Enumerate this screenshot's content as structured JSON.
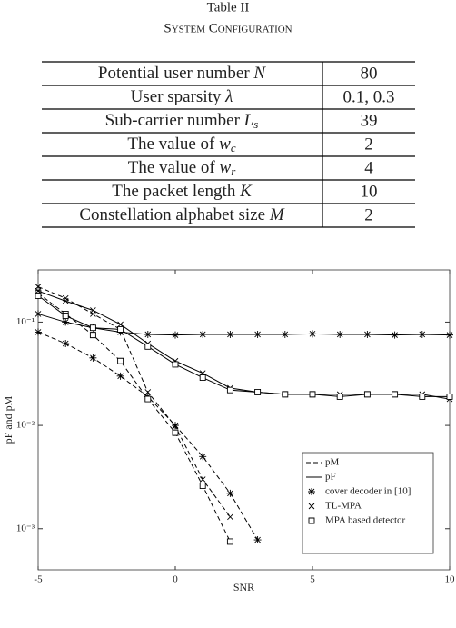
{
  "header": {
    "label": "Table II",
    "title": "System Configuration"
  },
  "table": {
    "rows": [
      [
        {
          "text": "Potential user number ",
          "math": "N"
        },
        "80"
      ],
      [
        {
          "text": "User sparsity ",
          "math": "λ"
        },
        "0.1, 0.3"
      ],
      [
        {
          "text": "Sub-carrier number ",
          "math": "L",
          "sub": "s"
        },
        "39"
      ],
      [
        {
          "text": "The value of ",
          "math": "w",
          "sub": "c"
        },
        "2"
      ],
      [
        {
          "text": "The value of ",
          "math": "w",
          "sub": "r"
        },
        "4"
      ],
      [
        {
          "text": "The packet length ",
          "math": "K"
        },
        "10"
      ],
      [
        {
          "text": "Constellation alphabet size ",
          "math": "M"
        },
        "2"
      ]
    ]
  },
  "chart_data": {
    "type": "line",
    "x_label": "SNR",
    "y_label": "pF and pM",
    "log_y": true,
    "x": [
      -5,
      -4,
      -3,
      -2,
      -1,
      0,
      1,
      2,
      3,
      4,
      5,
      6,
      7,
      8,
      9,
      10
    ],
    "xlim": [
      -5,
      10
    ],
    "xticks": [
      -5,
      0,
      5,
      10
    ],
    "ylim": [
      0.0004,
      0.32
    ],
    "yticks": [
      {
        "value": 0.001,
        "label": "10⁻³"
      },
      {
        "value": 0.01,
        "label": "10⁻²"
      },
      {
        "value": 0.1,
        "label": "10⁻¹"
      }
    ],
    "color": "#000000",
    "series": [
      {
        "line": "dashed",
        "marker": "star",
        "values": [
          0.08,
          0.062,
          0.045,
          0.03,
          0.019,
          0.01,
          0.005,
          0.0022,
          0.00078,
          null,
          null,
          null,
          null,
          null,
          null,
          null
        ]
      },
      {
        "line": "solid",
        "marker": "star",
        "values": [
          0.12,
          0.1,
          0.088,
          0.08,
          0.076,
          0.075,
          0.076,
          0.076,
          0.076,
          0.076,
          0.077,
          0.076,
          0.076,
          0.075,
          0.076,
          0.075
        ]
      },
      {
        "line": "dashed",
        "marker": "cross",
        "values": [
          0.22,
          0.17,
          0.12,
          0.085,
          0.021,
          0.0098,
          0.003,
          0.0013,
          null,
          null,
          null,
          null,
          null,
          null,
          null,
          null
        ]
      },
      {
        "line": "dashed",
        "marker": "square",
        "values": [
          0.19,
          0.12,
          0.075,
          0.042,
          0.018,
          0.0085,
          0.0026,
          0.00075,
          null,
          null,
          null,
          null,
          null,
          null,
          null,
          null
        ]
      },
      {
        "line": "solid",
        "marker": "cross",
        "values": [
          0.2,
          0.16,
          0.13,
          0.095,
          0.062,
          0.042,
          0.032,
          0.023,
          0.021,
          0.02,
          0.02,
          0.02,
          0.02,
          0.02,
          0.02,
          0.018
        ]
      },
      {
        "line": "solid",
        "marker": "square",
        "values": [
          0.18,
          0.115,
          0.088,
          0.085,
          0.058,
          0.039,
          0.029,
          0.022,
          0.021,
          0.02,
          0.02,
          0.019,
          0.02,
          0.02,
          0.019,
          0.019
        ]
      }
    ],
    "legend": [
      {
        "label": "pM",
        "line": "dashed"
      },
      {
        "label": "pF",
        "line": "solid"
      },
      {
        "label": "cover decoder in [10]",
        "marker": "star"
      },
      {
        "label": "TL-MPA",
        "marker": "cross"
      },
      {
        "label": "MPA based detector",
        "marker": "square"
      }
    ]
  }
}
